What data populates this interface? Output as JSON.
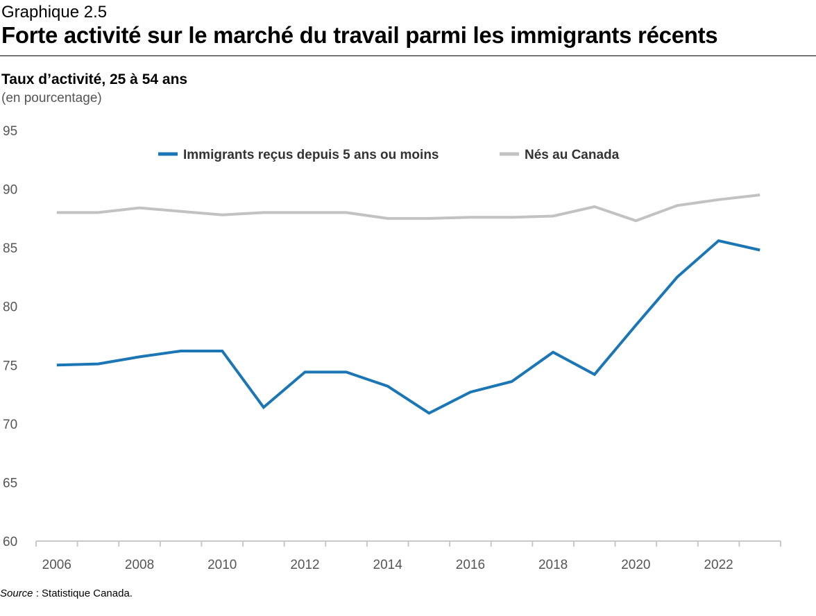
{
  "header": {
    "graph_number": "Graphique 2.5",
    "title": "Forte activité sur le marché du travail parmi les immigrants récents"
  },
  "footer": {
    "source_label": "Source",
    "source_text": " : Statistique Canada."
  },
  "chart_data": {
    "type": "line",
    "title": "Taux d’activité, 25 à 54 ans",
    "ylabel": "(en pourcentage)",
    "xlabel": "",
    "x": [
      2006,
      2007,
      2008,
      2009,
      2010,
      2011,
      2012,
      2013,
      2014,
      2015,
      2016,
      2017,
      2018,
      2019,
      2020,
      2021,
      2022,
      2023
    ],
    "xticks": [
      "2006",
      "2008",
      "2010",
      "2012",
      "2014",
      "2016",
      "2018",
      "2020",
      "2022"
    ],
    "ylim": [
      60,
      95
    ],
    "yticks": [
      "60",
      "65",
      "70",
      "75",
      "80",
      "85",
      "90",
      "95"
    ],
    "legend_position": "top",
    "series": [
      {
        "name": "Immigrants reçus depuis 5 ans ou moins",
        "color": "#1a76b5",
        "values": [
          75.0,
          75.1,
          75.7,
          76.2,
          76.2,
          71.4,
          74.4,
          74.4,
          73.2,
          70.9,
          72.7,
          73.6,
          76.1,
          74.2,
          78.4,
          82.5,
          85.6,
          84.8
        ]
      },
      {
        "name": "Nés au Canada",
        "color": "#c2c2c2",
        "values": [
          88.0,
          88.0,
          88.4,
          88.1,
          87.8,
          88.0,
          88.0,
          88.0,
          87.5,
          87.5,
          87.6,
          87.6,
          87.7,
          88.5,
          87.3,
          88.6,
          89.1,
          89.5
        ]
      }
    ]
  }
}
